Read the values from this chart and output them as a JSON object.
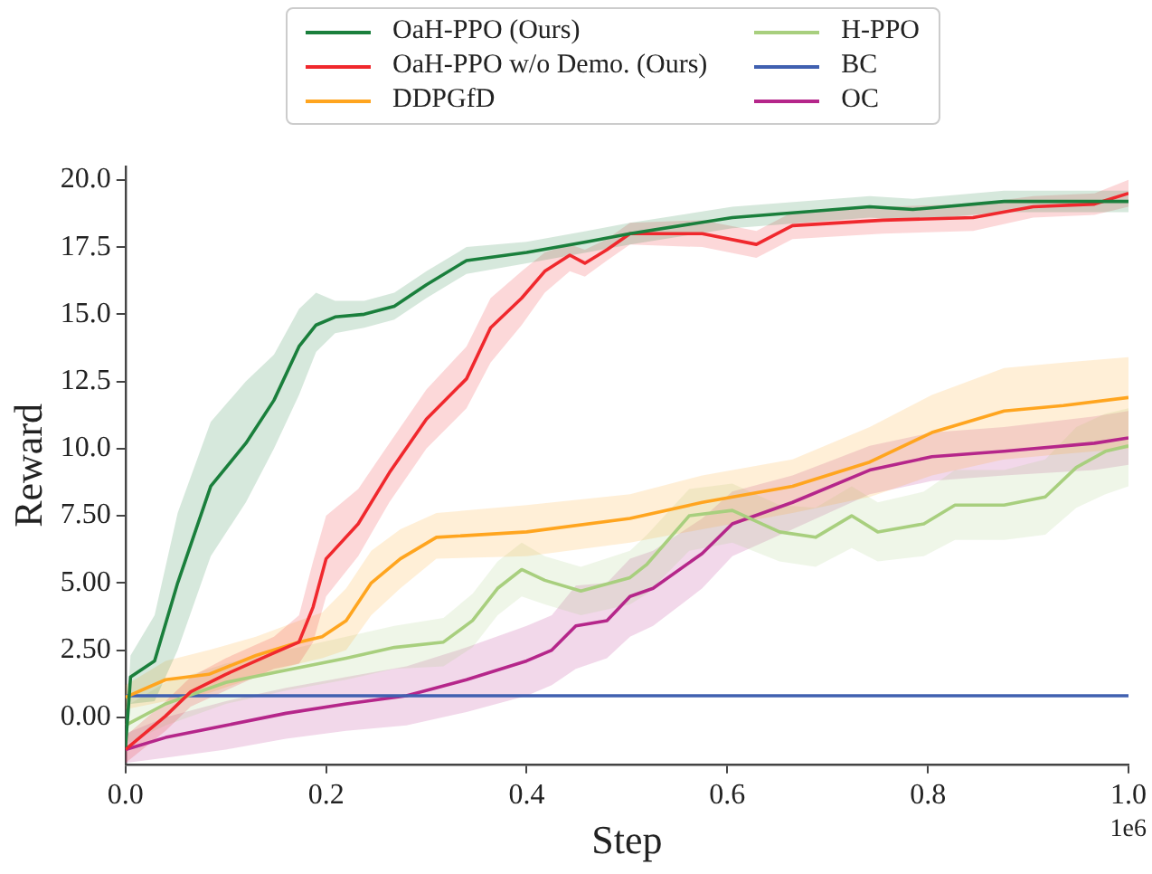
{
  "chart_data": {
    "type": "line",
    "xlabel": "Step",
    "ylabel": "Reward",
    "annotations": [
      "1e6"
    ],
    "xlim": [
      0,
      1
    ],
    "xticks": [
      {
        "value": 0,
        "label": "0.0"
      },
      {
        "value": 0.2,
        "label": "0.2"
      },
      {
        "value": 0.4,
        "label": "0.4"
      },
      {
        "value": 0.6,
        "label": "0.6"
      },
      {
        "value": 0.8,
        "label": "0.8"
      },
      {
        "value": 1,
        "label": "1.0"
      }
    ],
    "ylim": [
      -1.75,
      20.5
    ],
    "yticks": [
      {
        "value": 0,
        "label": "0.00"
      },
      {
        "value": 2.5,
        "label": "2.50"
      },
      {
        "value": 5,
        "label": "5.00"
      },
      {
        "value": 7.5,
        "label": "7.50"
      },
      {
        "value": 10,
        "label": "10.0"
      },
      {
        "value": 12.5,
        "label": "12.5"
      },
      {
        "value": 15,
        "label": "15.0"
      },
      {
        "value": 17.5,
        "label": "17.5"
      },
      {
        "value": 20,
        "label": "20.0"
      }
    ],
    "grid": false,
    "legend": "top",
    "marker": "none",
    "line_style": "solid",
    "series": [
      {
        "name": "OaH-PPO (Ours)",
        "color": "#1a7f3c",
        "x": [
          0,
          0.005,
          0.029,
          0.052,
          0.085,
          0.12,
          0.148,
          0.173,
          0.19,
          0.209,
          0.238,
          0.268,
          0.3,
          0.34,
          0.4,
          0.46,
          0.503,
          0.605,
          0.742,
          0.785,
          0.876,
          1.0
        ],
        "values": [
          -1.1,
          1.5,
          2.1,
          5.0,
          8.6,
          10.2,
          11.8,
          13.8,
          14.6,
          14.9,
          15.0,
          15.3,
          16.1,
          17.0,
          17.3,
          17.7,
          18.0,
          18.6,
          19.0,
          18.9,
          19.2,
          19.2
        ],
        "lower": [
          -1.6,
          0.5,
          0.6,
          2.5,
          6.0,
          8.0,
          10.0,
          12.0,
          13.6,
          14.3,
          14.5,
          14.8,
          15.6,
          16.5,
          16.9,
          17.3,
          17.6,
          18.2,
          18.6,
          18.5,
          18.8,
          18.8
        ],
        "upper": [
          -0.6,
          2.3,
          3.8,
          7.6,
          11.0,
          12.5,
          13.5,
          15.2,
          15.8,
          15.5,
          15.5,
          15.8,
          16.6,
          17.5,
          17.7,
          18.1,
          18.4,
          19.0,
          19.4,
          19.3,
          19.6,
          19.6
        ]
      },
      {
        "name": "OaH-PPO w/o Demo. (Ours)",
        "color": "#f0282d",
        "x": [
          0,
          0.04,
          0.065,
          0.1,
          0.148,
          0.173,
          0.187,
          0.2,
          0.232,
          0.263,
          0.3,
          0.34,
          0.364,
          0.395,
          0.418,
          0.443,
          0.458,
          0.48,
          0.503,
          0.575,
          0.629,
          0.665,
          0.755,
          0.845,
          0.905,
          0.966,
          1.0
        ],
        "values": [
          -1.2,
          0.05,
          0.95,
          1.6,
          2.4,
          2.8,
          4.1,
          5.9,
          7.2,
          9.1,
          11.1,
          12.6,
          14.5,
          15.6,
          16.6,
          17.2,
          16.9,
          17.4,
          18.0,
          18.0,
          17.6,
          18.3,
          18.5,
          18.6,
          19.0,
          19.1,
          19.5
        ],
        "lower": [
          -1.7,
          -0.5,
          0.4,
          1.0,
          1.8,
          2.0,
          2.8,
          4.5,
          6.0,
          8.0,
          10.0,
          11.5,
          13.2,
          14.6,
          15.8,
          16.6,
          16.4,
          17.0,
          17.6,
          17.5,
          17.1,
          17.8,
          18.0,
          18.1,
          18.6,
          18.7,
          19.0
        ],
        "upper": [
          -0.7,
          0.6,
          1.5,
          2.2,
          3.0,
          3.8,
          5.8,
          7.5,
          8.5,
          10.2,
          12.2,
          13.8,
          15.6,
          16.6,
          17.3,
          17.6,
          17.4,
          17.8,
          18.4,
          18.5,
          18.1,
          18.8,
          19.0,
          19.1,
          19.4,
          19.5,
          20.0
        ]
      },
      {
        "name": "DDPGfD",
        "color": "#ffa51f",
        "x": [
          0,
          0.04,
          0.083,
          0.13,
          0.173,
          0.196,
          0.22,
          0.245,
          0.274,
          0.31,
          0.4,
          0.503,
          0.575,
          0.665,
          0.742,
          0.804,
          0.876,
          0.935,
          1.0
        ],
        "values": [
          0.75,
          1.4,
          1.6,
          2.3,
          2.8,
          3.0,
          3.6,
          5.0,
          5.9,
          6.7,
          6.9,
          7.4,
          8.0,
          8.6,
          9.5,
          10.6,
          11.4,
          11.6,
          11.9
        ],
        "lower": [
          0.3,
          0.6,
          0.9,
          1.5,
          2.0,
          2.2,
          2.5,
          3.8,
          4.8,
          5.9,
          6.0,
          6.5,
          7.0,
          7.6,
          8.2,
          9.0,
          9.6,
          9.8,
          10.0
        ],
        "upper": [
          1.2,
          2.1,
          2.5,
          3.0,
          3.6,
          3.9,
          4.8,
          6.2,
          7.0,
          7.6,
          7.9,
          8.3,
          9.0,
          9.6,
          10.8,
          12.0,
          13.0,
          13.2,
          13.4
        ]
      },
      {
        "name": "H-PPO",
        "color": "#a8cf7e",
        "x": [
          0,
          0.04,
          0.1,
          0.16,
          0.22,
          0.268,
          0.317,
          0.346,
          0.371,
          0.395,
          0.418,
          0.454,
          0.503,
          0.52,
          0.562,
          0.605,
          0.652,
          0.688,
          0.724,
          0.75,
          0.796,
          0.827,
          0.876,
          0.917,
          0.948,
          0.977,
          1.0
        ],
        "values": [
          -0.3,
          0.5,
          1.3,
          1.75,
          2.2,
          2.6,
          2.8,
          3.6,
          4.8,
          5.5,
          5.1,
          4.7,
          5.2,
          5.7,
          7.5,
          7.7,
          6.9,
          6.7,
          7.5,
          6.9,
          7.2,
          7.9,
          7.9,
          8.2,
          9.3,
          9.9,
          10.1
        ],
        "lower": [
          -1.0,
          -0.3,
          0.5,
          1.0,
          1.4,
          1.8,
          1.9,
          2.6,
          3.8,
          4.5,
          4.2,
          3.8,
          4.2,
          4.6,
          6.2,
          6.5,
          5.8,
          5.6,
          6.3,
          5.8,
          6.0,
          6.6,
          6.6,
          6.8,
          7.8,
          8.3,
          8.6
        ],
        "upper": [
          0.4,
          1.3,
          2.0,
          2.5,
          3.0,
          3.4,
          3.7,
          4.6,
          5.8,
          6.5,
          6.0,
          5.6,
          6.2,
          6.8,
          8.5,
          8.7,
          7.9,
          7.8,
          8.6,
          8.0,
          8.4,
          9.2,
          9.2,
          9.6,
          10.8,
          11.3,
          11.5
        ]
      },
      {
        "name": "BC",
        "color": "#4060b0",
        "x": [
          0,
          1
        ],
        "values": [
          0.8,
          0.8
        ]
      },
      {
        "name": "OC",
        "color": "#b5268a",
        "x": [
          0,
          0.04,
          0.1,
          0.16,
          0.22,
          0.28,
          0.34,
          0.4,
          0.425,
          0.449,
          0.48,
          0.503,
          0.526,
          0.575,
          0.605,
          0.665,
          0.742,
          0.804,
          0.876,
          0.966,
          1.0
        ],
        "values": [
          -1.2,
          -0.75,
          -0.3,
          0.15,
          0.5,
          0.8,
          1.4,
          2.1,
          2.5,
          3.4,
          3.6,
          4.5,
          4.8,
          6.1,
          7.2,
          8.0,
          9.2,
          9.7,
          9.9,
          10.2,
          10.4
        ],
        "lower": [
          -1.7,
          -1.5,
          -1.2,
          -0.8,
          -0.5,
          -0.3,
          0.2,
          0.8,
          1.2,
          1.8,
          2.2,
          3.0,
          3.4,
          4.8,
          6.0,
          7.0,
          8.3,
          8.8,
          9.0,
          9.2,
          9.4
        ],
        "upper": [
          -0.6,
          0.0,
          0.6,
          1.1,
          1.5,
          1.9,
          2.6,
          3.4,
          3.8,
          4.9,
          5.0,
          5.9,
          6.2,
          7.4,
          8.4,
          9.0,
          10.1,
          10.6,
          10.8,
          11.2,
          11.4
        ]
      }
    ]
  }
}
